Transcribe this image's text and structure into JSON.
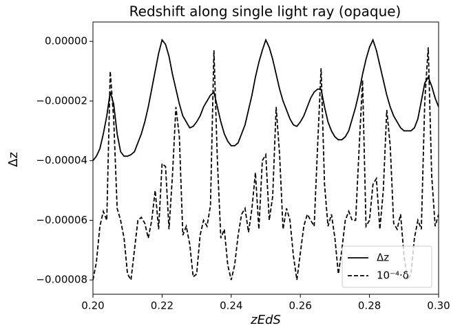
{
  "chart_data": {
    "type": "line",
    "title": "Redshift along single light ray (opaque)",
    "xlabel": "zEdS",
    "ylabel": "Δz",
    "x": [
      0.2,
      0.201,
      0.202,
      0.203,
      0.204,
      0.205,
      0.206,
      0.207,
      0.208,
      0.209,
      0.21,
      0.211,
      0.212,
      0.213,
      0.214,
      0.215,
      0.216,
      0.217,
      0.218,
      0.219,
      0.22,
      0.221,
      0.222,
      0.223,
      0.224,
      0.225,
      0.226,
      0.227,
      0.228,
      0.229,
      0.23,
      0.231,
      0.232,
      0.233,
      0.234,
      0.235,
      0.236,
      0.237,
      0.238,
      0.239,
      0.24,
      0.241,
      0.242,
      0.243,
      0.244,
      0.245,
      0.246,
      0.247,
      0.248,
      0.249,
      0.25,
      0.251,
      0.252,
      0.253,
      0.254,
      0.255,
      0.256,
      0.257,
      0.258,
      0.259,
      0.26,
      0.261,
      0.262,
      0.263,
      0.264,
      0.265,
      0.266,
      0.267,
      0.268,
      0.269,
      0.27,
      0.271,
      0.272,
      0.273,
      0.274,
      0.275,
      0.276,
      0.277,
      0.278,
      0.279,
      0.28,
      0.281,
      0.282,
      0.283,
      0.284,
      0.285,
      0.286,
      0.287,
      0.288,
      0.289,
      0.29,
      0.291,
      0.292,
      0.293,
      0.294,
      0.295,
      0.296,
      0.297,
      0.298,
      0.299,
      0.3
    ],
    "series": [
      {
        "name": "Δz",
        "color": "#000000",
        "linestyle": "solid",
        "values": [
          -4e-05,
          -3.85e-05,
          -3.6e-05,
          -3.1e-05,
          -2.5e-05,
          -1.7e-05,
          -2.1e-05,
          -3.1e-05,
          -3.7e-05,
          -3.85e-05,
          -3.85e-05,
          -3.8e-05,
          -3.7e-05,
          -3.4e-05,
          -3.1e-05,
          -2.7e-05,
          -2.2e-05,
          -1.6e-05,
          -1e-05,
          -4e-06,
          5e-07,
          -1e-06,
          -5e-06,
          -1.1e-05,
          -1.6e-05,
          -2.1e-05,
          -2.5e-05,
          -2.7e-05,
          -2.9e-05,
          -2.85e-05,
          -2.7e-05,
          -2.5e-05,
          -2.2e-05,
          -2e-05,
          -1.8e-05,
          -1.7e-05,
          -2.2e-05,
          -2.7e-05,
          -3.1e-05,
          -3.35e-05,
          -3.5e-05,
          -3.5e-05,
          -3.4e-05,
          -3.1e-05,
          -2.8e-05,
          -2.3e-05,
          -1.8e-05,
          -1.2e-05,
          -7e-06,
          -3e-06,
          5e-07,
          -2e-06,
          -6e-06,
          -1.1e-05,
          -1.6e-05,
          -2e-05,
          -2.3e-05,
          -2.6e-05,
          -2.8e-05,
          -2.85e-05,
          -2.7e-05,
          -2.5e-05,
          -2.2e-05,
          -1.9e-05,
          -1.7e-05,
          -1.6e-05,
          -1.6e-05,
          -2.2e-05,
          -2.7e-05,
          -3e-05,
          -3.2e-05,
          -3.3e-05,
          -3.3e-05,
          -3.2e-05,
          -3e-05,
          -2.6e-05,
          -2.2e-05,
          -1.7e-05,
          -1.1e-05,
          -6e-06,
          -2e-06,
          5e-07,
          -3e-06,
          -8e-06,
          -1.3e-05,
          -1.8e-05,
          -2.2e-05,
          -2.5e-05,
          -2.7e-05,
          -2.9e-05,
          -3e-05,
          -3e-05,
          -3e-05,
          -2.9e-05,
          -2.6e-05,
          -2e-05,
          -1.4e-05,
          -1.2e-05,
          -1.5e-05,
          -1.9e-05,
          -2.2e-05
        ]
      },
      {
        "name": "10⁻⁴·δ",
        "color": "#000000",
        "linestyle": "dashed",
        "values": [
          -8e-05,
          -7.4e-05,
          -6.2e-05,
          -5.7e-05,
          -6e-05,
          -1e-05,
          -2.6e-05,
          -5.6e-05,
          -6e-05,
          -6.6e-05,
          -7.8e-05,
          -8e-05,
          -7e-05,
          -6e-05,
          -5.9e-05,
          -6.1e-05,
          -6.6e-05,
          -6e-05,
          -5e-05,
          -6.3e-05,
          -4.1e-05,
          -4.2e-05,
          -6.3e-05,
          -4.5e-05,
          -2.2e-05,
          -3.2e-05,
          -6.5e-05,
          -6.2e-05,
          -6.8e-05,
          -7.9e-05,
          -7.8e-05,
          -6.5e-05,
          -6e-05,
          -6.2e-05,
          -5.5e-05,
          -3e-06,
          -4e-05,
          -6.6e-05,
          -6.3e-05,
          -7.5e-05,
          -8e-05,
          -7.5e-05,
          -6.5e-05,
          -5.8e-05,
          -5.6e-05,
          -6.4e-05,
          -5.6e-05,
          -4.4e-05,
          -6.3e-05,
          -4e-05,
          -3.8e-05,
          -6e-05,
          -5.2e-05,
          -2.2e-05,
          -3.8e-05,
          -6.3e-05,
          -5.6e-05,
          -6e-05,
          -7.2e-05,
          -8e-05,
          -7.1e-05,
          -6.2e-05,
          -5.8e-05,
          -6e-05,
          -6.2e-05,
          -3.5e-05,
          -9e-06,
          -4.8e-05,
          -6.2e-05,
          -5.8e-05,
          -6.6e-05,
          -7.8e-05,
          -7e-05,
          -6e-05,
          -5.7e-05,
          -6e-05,
          -6e-05,
          -3.6e-05,
          -1.3e-05,
          -6.2e-05,
          -6e-05,
          -4.8e-05,
          -4.6e-05,
          -6.3e-05,
          -5e-05,
          -2.3e-05,
          -3.5e-05,
          -6.1e-05,
          -6.3e-05,
          -5.8e-05,
          -7.2e-05,
          -8e-05,
          -7.8e-05,
          -6.6e-05,
          -6e-05,
          -6.3e-05,
          -2e-05,
          -2e-06,
          -4.5e-05,
          -6.2e-05,
          -5.8e-05
        ]
      }
    ],
    "xlim": [
      0.2,
      0.3
    ],
    "ylim": [
      -8.48e-05,
      6.5e-06
    ],
    "xticks": [
      {
        "value": 0.2,
        "label": "0.20"
      },
      {
        "value": 0.22,
        "label": "0.22"
      },
      {
        "value": 0.24,
        "label": "0.24"
      },
      {
        "value": 0.26,
        "label": "0.26"
      },
      {
        "value": 0.28,
        "label": "0.28"
      },
      {
        "value": 0.3,
        "label": "0.30"
      }
    ],
    "yticks": [
      {
        "value": 0,
        "label": "0.00000"
      },
      {
        "value": -2e-05,
        "label": "−0.00002"
      },
      {
        "value": -4e-05,
        "label": "−0.00004"
      },
      {
        "value": -6e-05,
        "label": "−0.00006"
      },
      {
        "value": -8e-05,
        "label": "−0.00008"
      }
    ],
    "legend": "lower right",
    "grid": false
  }
}
